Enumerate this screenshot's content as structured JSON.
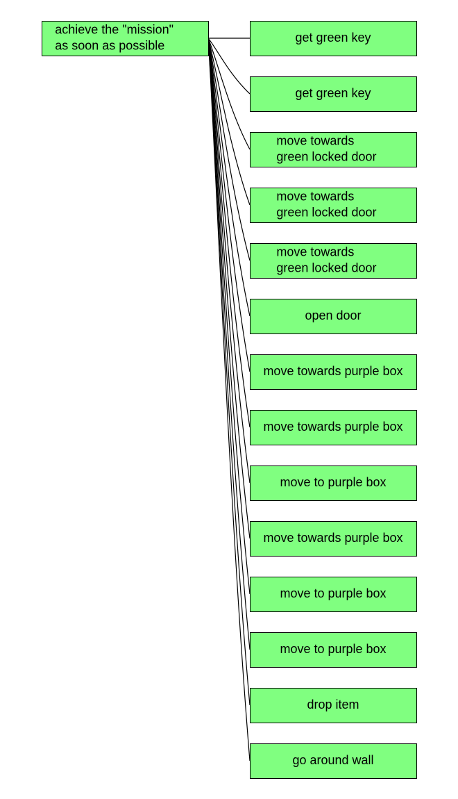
{
  "diagram": {
    "root": {
      "lines": [
        "achieve the \"mission\"",
        "as soon as possible"
      ]
    },
    "children": [
      {
        "lines": [
          "get green key"
        ]
      },
      {
        "lines": [
          "get green key"
        ]
      },
      {
        "lines": [
          "move towards",
          "green locked door"
        ]
      },
      {
        "lines": [
          "move towards",
          "green locked door"
        ]
      },
      {
        "lines": [
          "move towards",
          "green locked door"
        ]
      },
      {
        "lines": [
          "open door"
        ]
      },
      {
        "lines": [
          "move towards purple box"
        ]
      },
      {
        "lines": [
          "move towards purple box"
        ]
      },
      {
        "lines": [
          "move to purple box"
        ]
      },
      {
        "lines": [
          "move towards purple box"
        ]
      },
      {
        "lines": [
          "move to purple box"
        ]
      },
      {
        "lines": [
          "move to purple box"
        ]
      },
      {
        "lines": [
          "drop item"
        ]
      },
      {
        "lines": [
          "go around wall"
        ]
      }
    ],
    "colors": {
      "node_fill": "#80ff80",
      "node_border": "#000000",
      "edge": "#000000",
      "text": "#000000"
    }
  }
}
